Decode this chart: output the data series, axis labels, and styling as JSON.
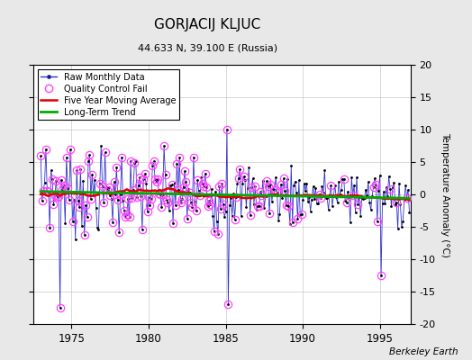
{
  "title": "GORJACIJ KLJUC",
  "subtitle": "44.633 N, 39.100 E (Russia)",
  "ylabel": "Temperature Anomaly (°C)",
  "xlim": [
    1972.5,
    1997.0
  ],
  "ylim": [
    -20,
    20
  ],
  "yticks": [
    -20,
    -15,
    -10,
    -5,
    0,
    5,
    10,
    15,
    20
  ],
  "xticks": [
    1975,
    1980,
    1985,
    1990,
    1995
  ],
  "watermark": "Berkeley Earth",
  "bg_color": "#e8e8e8",
  "plot_bg_color": "#ffffff",
  "line_color": "#3333cc",
  "ma_color": "#dd0000",
  "trend_color": "#00aa00",
  "qc_color": "#ff44ff",
  "title_fontsize": 11,
  "subtitle_fontsize": 8,
  "seed": 7
}
